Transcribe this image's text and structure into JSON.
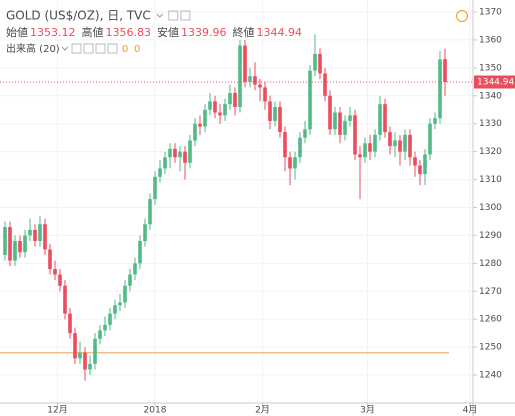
{
  "chart_data": {
    "type": "candlestick",
    "title": "GOLD (US$/OZ), 日, TVC",
    "ohlc_labels": [
      "始値",
      "高値",
      "安値",
      "終値"
    ],
    "volume_label": "出来高 (20)",
    "volume_values": [
      0,
      0
    ],
    "open": [
      1283,
      1293,
      1281,
      1288,
      1284,
      1290,
      1292,
      1288,
      1294,
      1285,
      1278,
      1276,
      1272,
      1262,
      1255,
      1246,
      1248,
      1242,
      1244,
      1253,
      1256,
      1258,
      1262,
      1265,
      1266,
      1272,
      1276,
      1280,
      1288,
      1294,
      1303,
      1311,
      1314,
      1318,
      1321,
      1318,
      1320,
      1316,
      1324,
      1330,
      1329,
      1335,
      1338,
      1334,
      1333,
      1337,
      1341,
      1336,
      1358,
      1345,
      1347,
      1344,
      1343,
      1338,
      1331,
      1336,
      1327,
      1318,
      1314,
      1318,
      1325,
      1328,
      1349,
      1355,
      1348,
      1340,
      1328,
      1334,
      1326,
      1331,
      1333,
      1319,
      1318,
      1323,
      1320,
      1326,
      1337,
      1327,
      1322,
      1324,
      1320,
      1326,
      1318,
      1315,
      1312,
      1319,
      1330,
      1332,
      1353.12
    ],
    "high": [
      1295,
      1295,
      1290,
      1290,
      1292,
      1296,
      1294,
      1297,
      1296,
      1287,
      1281,
      1278,
      1274,
      1264,
      1257,
      1252,
      1250,
      1247,
      1255,
      1258,
      1261,
      1264,
      1267,
      1269,
      1274,
      1278,
      1282,
      1290,
      1296,
      1305,
      1313,
      1317,
      1320,
      1323,
      1323,
      1322,
      1322,
      1326,
      1332,
      1333,
      1337,
      1341,
      1340,
      1337,
      1339,
      1344,
      1343,
      1360,
      1360,
      1350,
      1352,
      1346,
      1345,
      1340,
      1338,
      1338,
      1329,
      1320,
      1320,
      1327,
      1331,
      1351,
      1362,
      1357,
      1350,
      1342,
      1336,
      1336,
      1333,
      1336,
      1335,
      1322,
      1325,
      1326,
      1328,
      1340,
      1339,
      1329,
      1327,
      1326,
      1328,
      1328,
      1320,
      1317,
      1321,
      1332,
      1334,
      1356,
      1356.83
    ],
    "low": [
      1281,
      1279,
      1279,
      1282,
      1282,
      1288,
      1286,
      1286,
      1283,
      1276,
      1274,
      1270,
      1260,
      1253,
      1244,
      1244,
      1238,
      1240,
      1242,
      1251,
      1254,
      1256,
      1260,
      1263,
      1264,
      1270,
      1274,
      1278,
      1286,
      1292,
      1301,
      1309,
      1312,
      1314,
      1316,
      1313,
      1310,
      1314,
      1322,
      1326,
      1327,
      1333,
      1332,
      1330,
      1331,
      1335,
      1333,
      1334,
      1343,
      1343,
      1342,
      1338,
      1335,
      1328,
      1329,
      1325,
      1313,
      1308,
      1310,
      1316,
      1323,
      1326,
      1347,
      1346,
      1338,
      1326,
      1326,
      1323,
      1324,
      1329,
      1317,
      1303,
      1316,
      1317,
      1318,
      1324,
      1325,
      1319,
      1318,
      1315,
      1317,
      1315,
      1311,
      1308,
      1308,
      1317,
      1328,
      1330,
      1339.96
    ],
    "close": [
      1293,
      1281,
      1288,
      1284,
      1290,
      1292,
      1288,
      1294,
      1285,
      1278,
      1276,
      1272,
      1262,
      1255,
      1246,
      1248,
      1242,
      1244,
      1253,
      1256,
      1258,
      1262,
      1265,
      1266,
      1272,
      1276,
      1280,
      1288,
      1294,
      1303,
      1311,
      1314,
      1318,
      1321,
      1318,
      1320,
      1316,
      1324,
      1330,
      1329,
      1335,
      1338,
      1334,
      1333,
      1337,
      1341,
      1336,
      1358,
      1345,
      1347,
      1344,
      1343,
      1338,
      1331,
      1336,
      1327,
      1318,
      1314,
      1318,
      1325,
      1328,
      1349,
      1355,
      1348,
      1340,
      1328,
      1334,
      1326,
      1331,
      1333,
      1319,
      1318,
      1323,
      1320,
      1326,
      1337,
      1327,
      1322,
      1324,
      1320,
      1326,
      1318,
      1315,
      1312,
      1319,
      1330,
      1332,
      1353,
      1344.94
    ],
    "up_color": "#53b987",
    "down_color": "#eb4d5c",
    "horizontal_line": {
      "value": 1248,
      "color": "#f0b27a"
    },
    "xlim": [
      -1,
      93.6
    ],
    "xticks": [
      {
        "value": 10.5,
        "label": "12月"
      },
      {
        "value": 30,
        "label": "2018"
      },
      {
        "value": 51.5,
        "label": "2月"
      },
      {
        "value": 72.5,
        "label": "3月"
      },
      {
        "value": 93,
        "label": "4月"
      }
    ],
    "ylim": [
      1230,
      1374.3
    ],
    "yticks": [
      1240,
      1250,
      1260,
      1270,
      1280,
      1290,
      1300,
      1310,
      1320,
      1330,
      1340,
      1350,
      1360,
      1370
    ],
    "grid": true
  }
}
